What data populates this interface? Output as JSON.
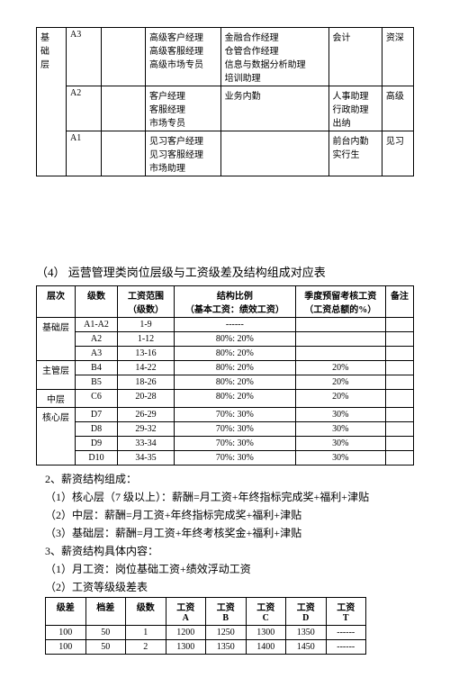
{
  "table1": {
    "col0_label": "基础层",
    "rows": [
      {
        "level": "A3",
        "c2": [
          "高级客户经理",
          "高级客服经理",
          "高级市场专员"
        ],
        "c3": [
          "金融合作经理",
          "仓管合作经理",
          "信息与数据分析助理",
          "培训助理"
        ],
        "c4": [
          "会计"
        ],
        "c5": [
          "资深"
        ]
      },
      {
        "level": "A2",
        "c2": [
          "客户经理",
          "客服经理",
          "市场专员"
        ],
        "c3": [
          "业务内勤"
        ],
        "c4": [
          "人事助理",
          "行政助理",
          "出纳"
        ],
        "c5": [
          "高级"
        ]
      },
      {
        "level": "A1",
        "c2": [
          "见习客户经理",
          "见习客服经理",
          "市场助理"
        ],
        "c3": [],
        "c4": [
          "前台内勤",
          "实行生"
        ],
        "c5": [
          "见习"
        ]
      }
    ]
  },
  "sec4_title": "（4） 运营管理类岗位层级与工资级差及结构组成对应表",
  "table2": {
    "headers": [
      "层次",
      "级数",
      "工资范围\n（级数）",
      "结构比例\n（基本工资：绩效工资）",
      "季度预留考核工资\n（工资总额的%）",
      "备注"
    ],
    "groups": [
      {
        "layer": "基础层",
        "rows": [
          {
            "lvl": "A1-A2",
            "range": "1-9",
            "ratio": "------",
            "quota": "",
            "note": ""
          },
          {
            "lvl": "A2",
            "range": "1-12",
            "ratio": "80%: 20%",
            "quota": "",
            "note": ""
          },
          {
            "lvl": "A3",
            "range": "13-16",
            "ratio": "80%: 20%",
            "quota": "",
            "note": ""
          }
        ]
      },
      {
        "layer": "主管层",
        "rows": [
          {
            "lvl": "B4",
            "range": "14-22",
            "ratio": "80%: 20%",
            "quota": "20%",
            "note": ""
          },
          {
            "lvl": "B5",
            "range": "18-26",
            "ratio": "80%: 20%",
            "quota": "20%",
            "note": ""
          }
        ]
      },
      {
        "layer": "中层",
        "rows": [
          {
            "lvl": "C6",
            "range": "20-28",
            "ratio": "80%: 20%",
            "quota": "20%",
            "note": ""
          }
        ]
      },
      {
        "layer": "核心层",
        "rows": [
          {
            "lvl": "D7",
            "range": "26-29",
            "ratio": "70%: 30%",
            "quota": "30%",
            "note": ""
          },
          {
            "lvl": "D8",
            "range": "29-32",
            "ratio": "70%: 30%",
            "quota": "30%",
            "note": ""
          },
          {
            "lvl": "D9",
            "range": "33-34",
            "ratio": "70%: 30%",
            "quota": "30%",
            "note": ""
          },
          {
            "lvl": "D10",
            "range": "34-35",
            "ratio": "70%: 30%",
            "quota": "30%",
            "note": ""
          }
        ]
      }
    ]
  },
  "s2_title": "2、薪资结构组成：",
  "s2_items": [
    "（1）核心层（7 级以上）：薪酬=月工资+年终指标完成奖+福利+津贴",
    "（2）中层：薪酬=月工资+年终指标完成奖+福利+津贴",
    "（3）基础层：薪酬=月工资+年终考核奖金+福利+津贴"
  ],
  "s3_title": "3、薪资结构具体内容：",
  "s3_items": [
    "（1）月工资：岗位基础工资+绩效浮动工资",
    "（2）工资等级级差表"
  ],
  "table3": {
    "headers": [
      "级差",
      "档差",
      "级数",
      "工资\nA",
      "工资\nB",
      "工资\nC",
      "工资\nD",
      "工资\nT"
    ],
    "rows": [
      [
        "100",
        "50",
        "1",
        "1200",
        "1250",
        "1300",
        "1350",
        "------"
      ],
      [
        "100",
        "50",
        "2",
        "1300",
        "1350",
        "1400",
        "1450",
        "------"
      ]
    ]
  }
}
